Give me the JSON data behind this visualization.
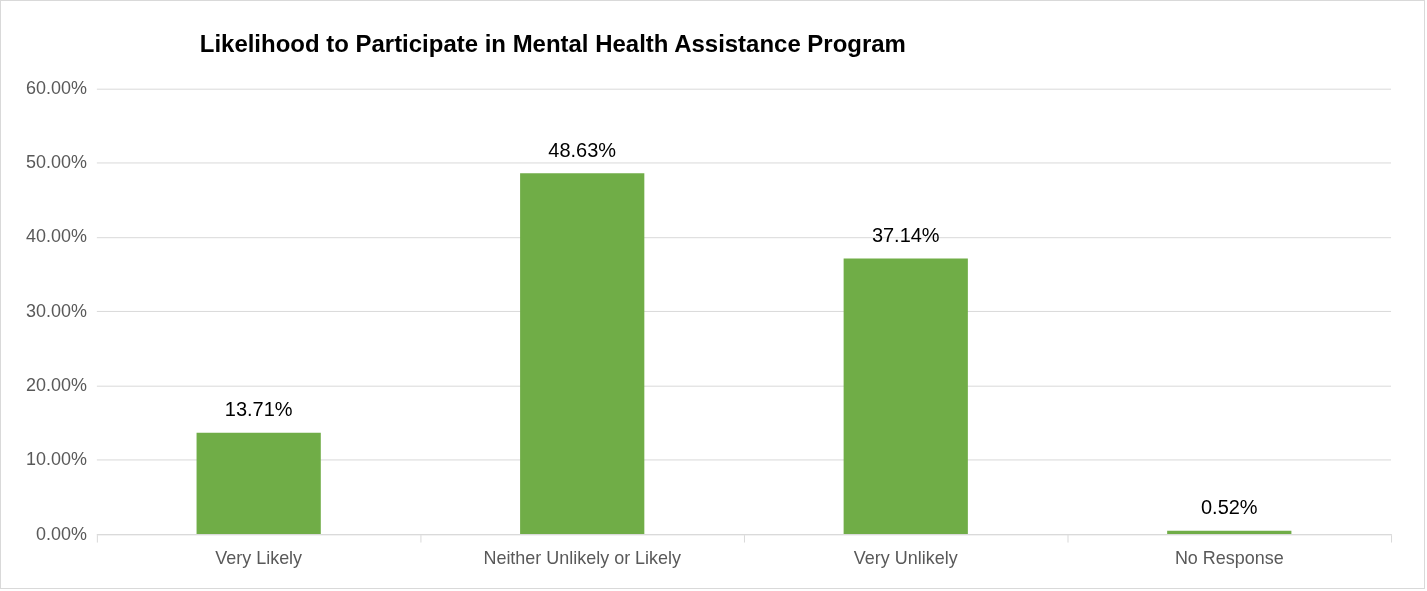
{
  "chart_data": {
    "type": "bar",
    "title": "Likelihood to Participate in Mental Health Assistance Program",
    "categories": [
      "Very Likely",
      "Neither Unlikely or Likely",
      "Very Unlikely",
      "No Response"
    ],
    "values": [
      13.71,
      48.63,
      37.14,
      0.52
    ],
    "value_labels": [
      "13.71%",
      "48.63%",
      "37.14%",
      "0.52%"
    ],
    "color": "#70ad47",
    "ylim": [
      0,
      60
    ],
    "yticks": [
      {
        "value": 0,
        "label": "0.00%"
      },
      {
        "value": 10,
        "label": "10.00%"
      },
      {
        "value": 20,
        "label": "20.00%"
      },
      {
        "value": 30,
        "label": "30.00%"
      },
      {
        "value": 40,
        "label": "40.00%"
      },
      {
        "value": 50,
        "label": "50.00%"
      },
      {
        "value": 60,
        "label": "60.00%"
      }
    ],
    "grid": "y"
  }
}
